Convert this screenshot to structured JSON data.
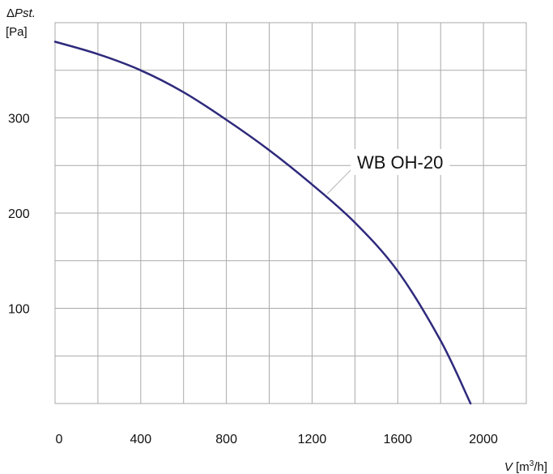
{
  "chart_data": {
    "type": "line",
    "xlabel": {
      "symbol": "V",
      "unit_pre": "[m",
      "unit_sup": "3",
      "unit_post": "/h]"
    },
    "ylabel": {
      "symbol": "ΔPst.",
      "unit": "[Pa]"
    },
    "xlim": [
      0,
      2200
    ],
    "ylim": [
      0,
      400
    ],
    "grid": true,
    "x_ticks": [
      0,
      400,
      800,
      1200,
      1600,
      2000
    ],
    "y_ticks": [
      100,
      200,
      300
    ],
    "x_grid_step": 200,
    "y_grid_step": 50,
    "series": [
      {
        "name": "WB OH-20",
        "color": "#2e2a7c",
        "x": [
          0,
          200,
          400,
          600,
          800,
          1000,
          1200,
          1400,
          1600,
          1800,
          1940
        ],
        "y": [
          380,
          367,
          350,
          327,
          298,
          266,
          230,
          190,
          139,
          66,
          0
        ]
      }
    ],
    "annotation": {
      "text": "WB OH-20",
      "points_to": [
        1270,
        220
      ]
    }
  }
}
